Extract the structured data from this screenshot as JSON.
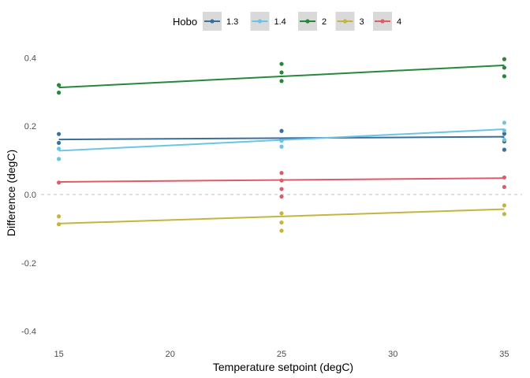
{
  "chart_data": {
    "type": "scatter",
    "title": "",
    "xlabel": "Temperature setpoint (degC)",
    "ylabel": "Difference (degC)",
    "xlim": [
      14.2,
      35.8
    ],
    "ylim": [
      -0.44,
      0.44
    ],
    "x_ticks": [
      "15",
      "20",
      "25",
      "30",
      "35"
    ],
    "x_tick_values": [
      15,
      20,
      25,
      30,
      35
    ],
    "y_ticks": [
      "-0.4",
      "-0.2",
      "0.0",
      "0.2",
      "0.4"
    ],
    "y_tick_values": [
      -0.4,
      -0.2,
      0.0,
      0.2,
      0.4
    ],
    "grid": false,
    "reference_line": {
      "y": 0.0,
      "style": "dashed",
      "color": "#bfbfbf"
    },
    "legend": {
      "title": "Hobo",
      "placement": "top"
    },
    "series": [
      {
        "name": "1.3",
        "color": "#3a6e9e",
        "points": [
          [
            15,
            0.177
          ],
          [
            15,
            0.151
          ],
          [
            25,
            0.186
          ],
          [
            25,
            0.158
          ],
          [
            35,
            0.178
          ],
          [
            35,
            0.155
          ],
          [
            35,
            0.131
          ]
        ],
        "fit": [
          [
            15,
            0.161
          ],
          [
            35,
            0.169
          ]
        ]
      },
      {
        "name": "1.4",
        "color": "#6bc4e8",
        "points": [
          [
            15,
            0.134
          ],
          [
            15,
            0.104
          ],
          [
            25,
            0.157
          ],
          [
            25,
            0.14
          ],
          [
            35,
            0.21
          ],
          [
            35,
            0.187
          ],
          [
            35,
            0.16
          ]
        ],
        "fit": [
          [
            15,
            0.128
          ],
          [
            35,
            0.191
          ]
        ]
      },
      {
        "name": "2",
        "color": "#25883a",
        "points": [
          [
            15,
            0.32
          ],
          [
            15,
            0.298
          ],
          [
            25,
            0.382
          ],
          [
            25,
            0.357
          ],
          [
            25,
            0.332
          ],
          [
            35,
            0.396
          ],
          [
            35,
            0.371
          ],
          [
            35,
            0.346
          ]
        ],
        "fit": [
          [
            15,
            0.313
          ],
          [
            35,
            0.378
          ]
        ]
      },
      {
        "name": "3",
        "color": "#c5b53f",
        "points": [
          [
            15,
            -0.064
          ],
          [
            15,
            -0.087
          ],
          [
            25,
            -0.055
          ],
          [
            25,
            -0.082
          ],
          [
            25,
            -0.106
          ],
          [
            35,
            -0.032
          ],
          [
            35,
            -0.057
          ]
        ],
        "fit": [
          [
            15,
            -0.085
          ],
          [
            35,
            -0.043
          ]
        ]
      },
      {
        "name": "4",
        "color": "#e05a6a",
        "points": [
          [
            15,
            0.035
          ],
          [
            25,
            0.063
          ],
          [
            25,
            0.041
          ],
          [
            25,
            0.016
          ],
          [
            25,
            -0.006
          ],
          [
            35,
            0.05
          ],
          [
            35,
            0.022
          ]
        ],
        "fit": [
          [
            15,
            0.037
          ],
          [
            35,
            0.048
          ]
        ]
      }
    ]
  }
}
